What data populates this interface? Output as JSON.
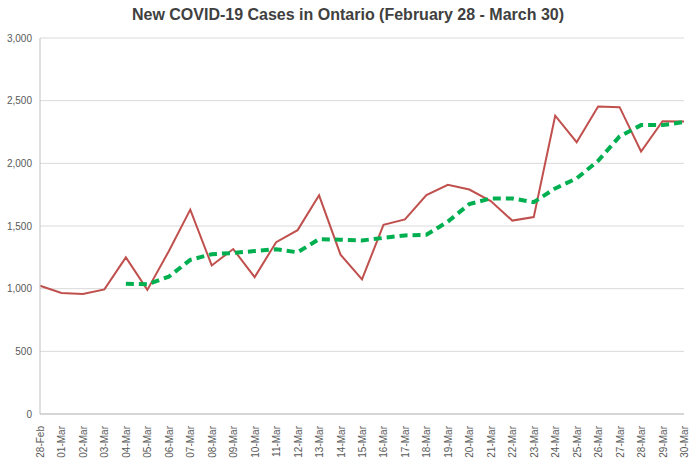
{
  "chart_data": {
    "type": "line",
    "title": "New COVID-19 Cases in Ontario (February 28 - March 30)",
    "categories": [
      "28-Feb",
      "01-Mar",
      "02-Mar",
      "03-Mar",
      "04-Mar",
      "05-Mar",
      "06-Mar",
      "07-Mar",
      "08-Mar",
      "09-Mar",
      "10-Mar",
      "11-Mar",
      "12-Mar",
      "13-Mar",
      "14-Mar",
      "15-Mar",
      "16-Mar",
      "17-Mar",
      "18-Mar",
      "19-Mar",
      "20-Mar",
      "21-Mar",
      "22-Mar",
      "23-Mar",
      "24-Mar",
      "25-Mar",
      "26-Mar",
      "27-Mar",
      "28-Mar",
      "29-Mar",
      "30-Mar"
    ],
    "series": [
      {
        "color": "#c0504d",
        "line_style": "solid",
        "values": [
          1023,
          966,
          958,
          994,
          1250,
          990,
          1299,
          1631,
          1185,
          1316,
          1092,
          1371,
          1467,
          1745,
          1271,
          1074,
          1509,
          1553,
          1746,
          1829,
          1791,
          1699,
          1543,
          1571,
          2380,
          2169,
          2453,
          2448,
          2094,
          2336,
          2333
        ]
      },
      {
        "color": "#00b050",
        "line_style": "dashed",
        "values": [
          null,
          null,
          null,
          null,
          1040,
          1035,
          1095,
          1230,
          1275,
          1285,
          1300,
          1315,
          1290,
          1395,
          1390,
          1385,
          1405,
          1425,
          1430,
          1535,
          1675,
          1720,
          1720,
          1690,
          1800,
          1880,
          2020,
          2215,
          2305,
          2305,
          2330
        ]
      }
    ],
    "ylim": [
      0,
      3000
    ],
    "yticks": [
      0,
      500,
      {
        "value": 1000,
        "label": "1,000"
      },
      {
        "value": 1500,
        "label": "1,500"
      },
      {
        "value": 2000,
        "label": "2,000"
      },
      {
        "value": 2500,
        "label": "2,500"
      },
      {
        "value": 3000,
        "label": "3,000"
      }
    ],
    "grid": true
  }
}
